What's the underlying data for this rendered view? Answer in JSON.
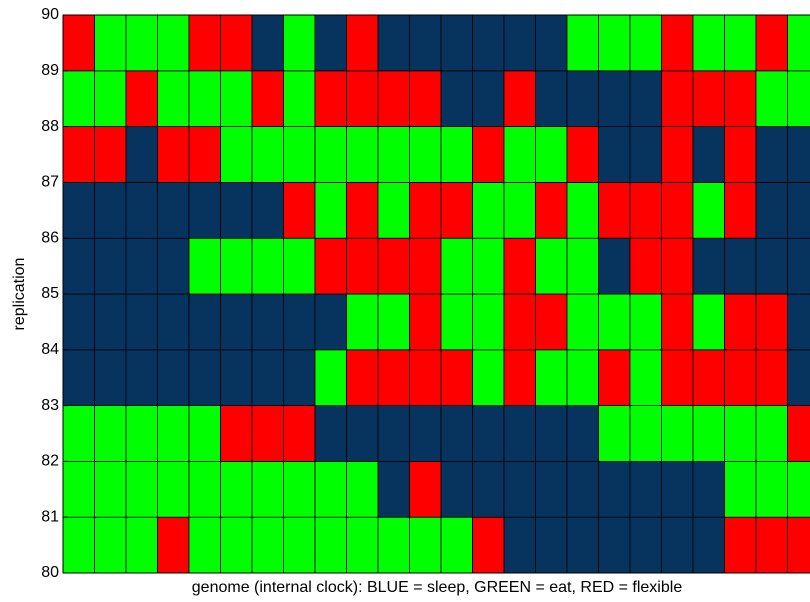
{
  "chart_data": {
    "type": "heatmap",
    "xlabel": "genome (internal clock): BLUE = sleep, GREEN = eat, RED = flexible",
    "ylabel": "replication",
    "ylim": [
      80,
      90
    ],
    "yticks": [
      80,
      81,
      82,
      83,
      84,
      85,
      86,
      87,
      88,
      89,
      90
    ],
    "colors": [
      "#06345f",
      "#00ff00",
      "#ff0000"
    ],
    "values": [
      [
        1,
        1,
        1,
        2,
        1,
        1,
        1,
        1,
        1,
        1,
        1,
        1,
        1,
        2,
        0,
        0,
        0,
        0,
        0,
        0,
        0,
        2,
        2,
        2
      ],
      [
        1,
        1,
        1,
        1,
        1,
        1,
        1,
        1,
        1,
        1,
        0,
        2,
        0,
        0,
        0,
        0,
        0,
        0,
        0,
        0,
        0,
        1,
        1,
        1
      ],
      [
        1,
        1,
        1,
        1,
        1,
        2,
        2,
        2,
        0,
        0,
        0,
        0,
        0,
        0,
        0,
        0,
        0,
        1,
        1,
        1,
        1,
        1,
        1,
        2
      ],
      [
        0,
        0,
        0,
        0,
        0,
        0,
        0,
        0,
        1,
        2,
        2,
        2,
        2,
        1,
        2,
        1,
        1,
        2,
        1,
        2,
        2,
        2,
        2,
        0
      ],
      [
        0,
        0,
        0,
        0,
        0,
        0,
        0,
        0,
        0,
        1,
        1,
        2,
        1,
        1,
        2,
        2,
        1,
        1,
        1,
        2,
        1,
        2,
        2,
        0
      ],
      [
        0,
        0,
        0,
        0,
        1,
        1,
        1,
        1,
        2,
        2,
        2,
        2,
        1,
        1,
        2,
        1,
        1,
        0,
        2,
        2,
        0,
        0,
        0,
        0
      ],
      [
        0,
        0,
        0,
        0,
        0,
        0,
        0,
        2,
        1,
        2,
        1,
        2,
        2,
        1,
        1,
        2,
        1,
        2,
        2,
        2,
        1,
        2,
        0,
        0
      ],
      [
        2,
        2,
        0,
        2,
        2,
        1,
        1,
        1,
        1,
        1,
        1,
        1,
        1,
        2,
        1,
        1,
        2,
        0,
        0,
        2,
        0,
        2,
        0,
        0
      ],
      [
        1,
        1,
        2,
        1,
        1,
        1,
        2,
        1,
        2,
        2,
        2,
        2,
        0,
        0,
        2,
        0,
        0,
        0,
        0,
        2,
        2,
        2,
        1,
        1
      ],
      [
        2,
        1,
        1,
        1,
        2,
        2,
        0,
        1,
        0,
        2,
        0,
        0,
        0,
        0,
        0,
        0,
        1,
        1,
        1,
        2,
        1,
        1,
        2,
        1
      ]
    ]
  }
}
